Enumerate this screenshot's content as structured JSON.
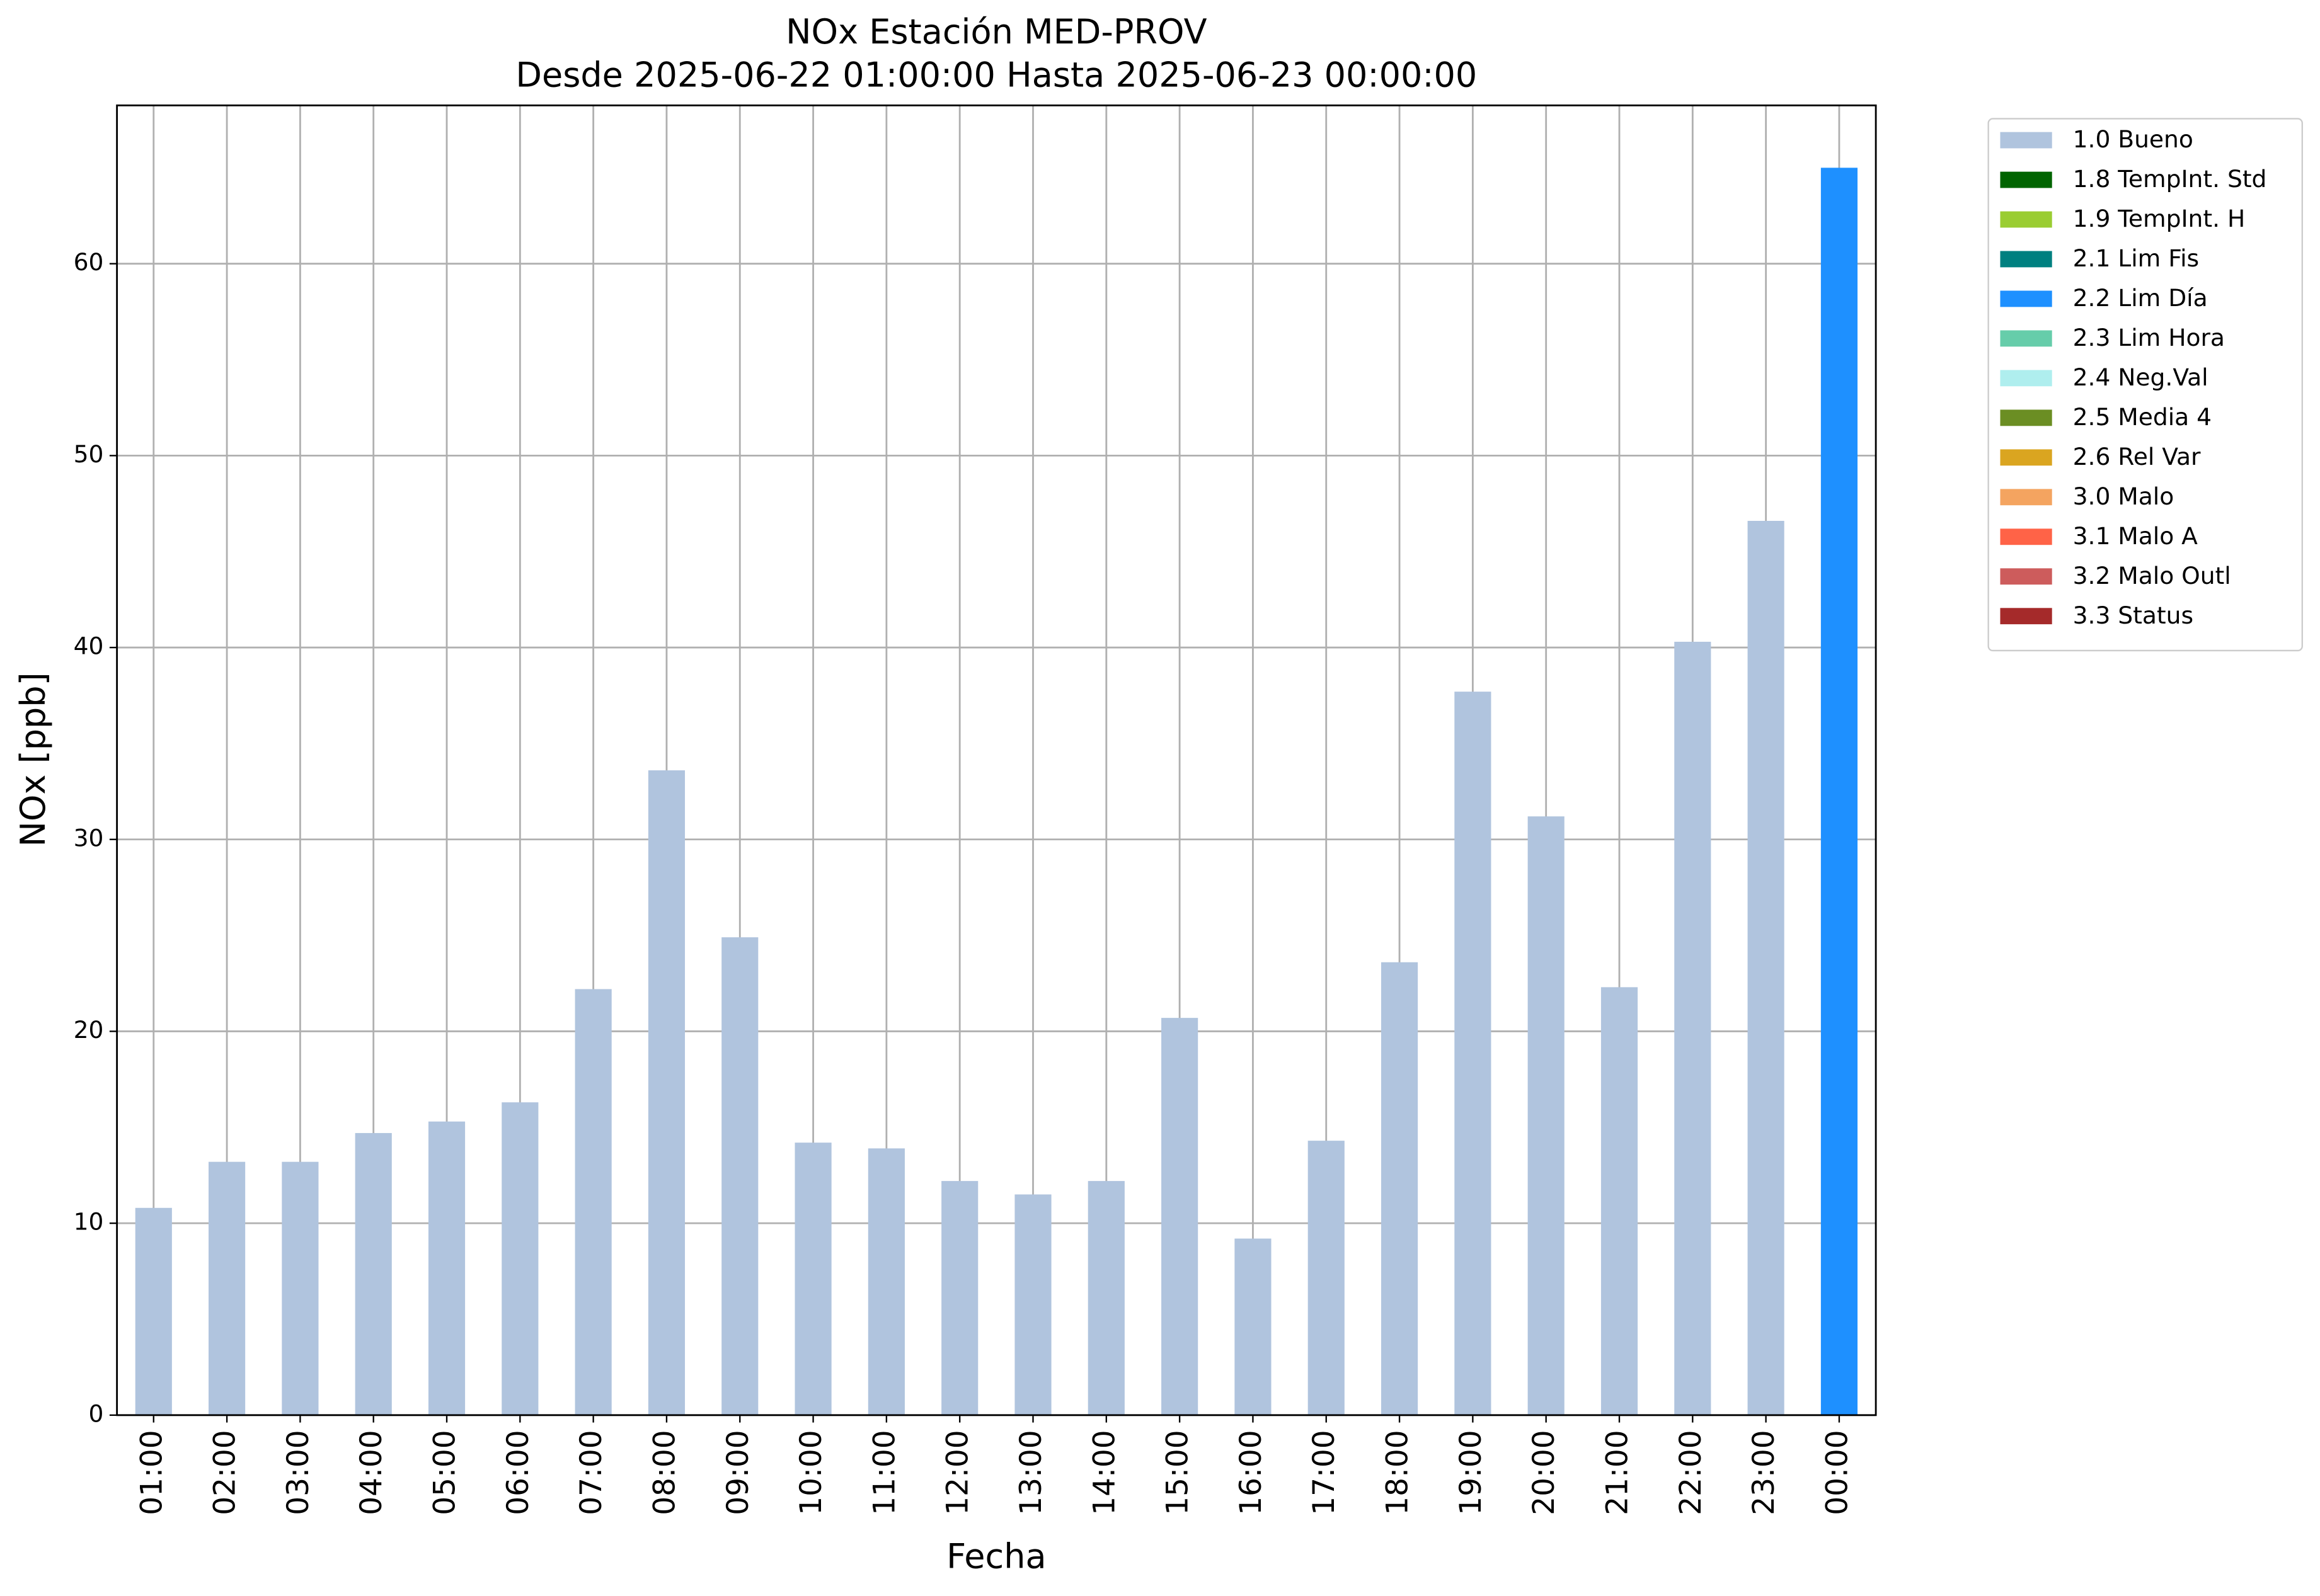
{
  "chart_data": {
    "type": "stacked_bar",
    "title": "NOx Estación MED-PROV",
    "subtitle": "Desde 2025-06-22 01:00:00 Hasta 2025-06-23 00:00:00",
    "x_label": "Fecha",
    "y_label": "NOx [ppb]",
    "categories": [
      "01:00",
      "02:00",
      "03:00",
      "04:00",
      "05:00",
      "06:00",
      "07:00",
      "08:00",
      "09:00",
      "10:00",
      "11:00",
      "12:00",
      "13:00",
      "14:00",
      "15:00",
      "16:00",
      "17:00",
      "18:00",
      "19:00",
      "20:00",
      "21:00",
      "22:00",
      "23:00",
      "00:00"
    ],
    "series": [
      {
        "name": "1.0 Bueno",
        "color": "#b0c4de",
        "values": [
          10.8,
          13.2,
          13.2,
          14.7,
          15.3,
          16.3,
          22.2,
          33.6,
          24.9,
          14.2,
          13.9,
          12.2,
          11.5,
          12.2,
          20.7,
          9.2,
          14.3,
          23.6,
          37.7,
          31.2,
          22.3,
          40.3,
          46.6,
          null
        ]
      },
      {
        "name": "1.8 TempInt. Std",
        "color": "#006400",
        "values": [
          null,
          null,
          null,
          null,
          null,
          null,
          null,
          null,
          null,
          null,
          null,
          null,
          null,
          null,
          null,
          null,
          null,
          null,
          null,
          null,
          null,
          null,
          null,
          null
        ]
      },
      {
        "name": "1.9 TempInt. H",
        "color": "#9acd32",
        "values": [
          null,
          null,
          null,
          null,
          null,
          null,
          null,
          null,
          null,
          null,
          null,
          null,
          null,
          null,
          null,
          null,
          null,
          null,
          null,
          null,
          null,
          null,
          null,
          null
        ]
      },
      {
        "name": "2.1 Lim Fis",
        "color": "#008080",
        "values": [
          null,
          null,
          null,
          null,
          null,
          null,
          null,
          null,
          null,
          null,
          null,
          null,
          null,
          null,
          null,
          null,
          null,
          null,
          null,
          null,
          null,
          null,
          null,
          null
        ]
      },
      {
        "name": "2.2 Lim Día",
        "color": "#1e90ff",
        "values": [
          null,
          null,
          null,
          null,
          null,
          null,
          null,
          null,
          null,
          null,
          null,
          null,
          null,
          null,
          null,
          null,
          null,
          null,
          null,
          null,
          null,
          null,
          null,
          65.0
        ]
      },
      {
        "name": "2.3 Lim Hora",
        "color": "#66cdaa",
        "values": [
          null,
          null,
          null,
          null,
          null,
          null,
          null,
          null,
          null,
          null,
          null,
          null,
          null,
          null,
          null,
          null,
          null,
          null,
          null,
          null,
          null,
          null,
          null,
          null
        ]
      },
      {
        "name": "2.4 Neg.Val",
        "color": "#afeeee",
        "values": [
          null,
          null,
          null,
          null,
          null,
          null,
          null,
          null,
          null,
          null,
          null,
          null,
          null,
          null,
          null,
          null,
          null,
          null,
          null,
          null,
          null,
          null,
          null,
          null
        ]
      },
      {
        "name": "2.5 Media 4",
        "color": "#6b8e23",
        "values": [
          null,
          null,
          null,
          null,
          null,
          null,
          null,
          null,
          null,
          null,
          null,
          null,
          null,
          null,
          null,
          null,
          null,
          null,
          null,
          null,
          null,
          null,
          null,
          null
        ]
      },
      {
        "name": "2.6 Rel Var",
        "color": "#daa520",
        "values": [
          null,
          null,
          null,
          null,
          null,
          null,
          null,
          null,
          null,
          null,
          null,
          null,
          null,
          null,
          null,
          null,
          null,
          null,
          null,
          null,
          null,
          null,
          null,
          null
        ]
      },
      {
        "name": "3.0 Malo",
        "color": "#f4a460",
        "values": [
          null,
          null,
          null,
          null,
          null,
          null,
          null,
          null,
          null,
          null,
          null,
          null,
          null,
          null,
          null,
          null,
          null,
          null,
          null,
          null,
          null,
          null,
          null,
          null
        ]
      },
      {
        "name": "3.1 Malo A",
        "color": "#ff6347",
        "values": [
          null,
          null,
          null,
          null,
          null,
          null,
          null,
          null,
          null,
          null,
          null,
          null,
          null,
          null,
          null,
          null,
          null,
          null,
          null,
          null,
          null,
          null,
          null,
          null
        ]
      },
      {
        "name": "3.2 Malo Outl",
        "color": "#cd5c5c",
        "values": [
          null,
          null,
          null,
          null,
          null,
          null,
          null,
          null,
          null,
          null,
          null,
          null,
          null,
          null,
          null,
          null,
          null,
          null,
          null,
          null,
          null,
          null,
          null,
          null
        ]
      },
      {
        "name": "3.3 Status",
        "color": "#a52a2a",
        "values": [
          null,
          null,
          null,
          null,
          null,
          null,
          null,
          null,
          null,
          null,
          null,
          null,
          null,
          null,
          null,
          null,
          null,
          null,
          null,
          null,
          null,
          null,
          null,
          null
        ]
      }
    ],
    "ylim": [
      0,
      68.25
    ],
    "yticks": [
      0,
      10,
      20,
      30,
      40,
      50,
      60
    ],
    "grid": true,
    "legend": "outside upper right"
  }
}
